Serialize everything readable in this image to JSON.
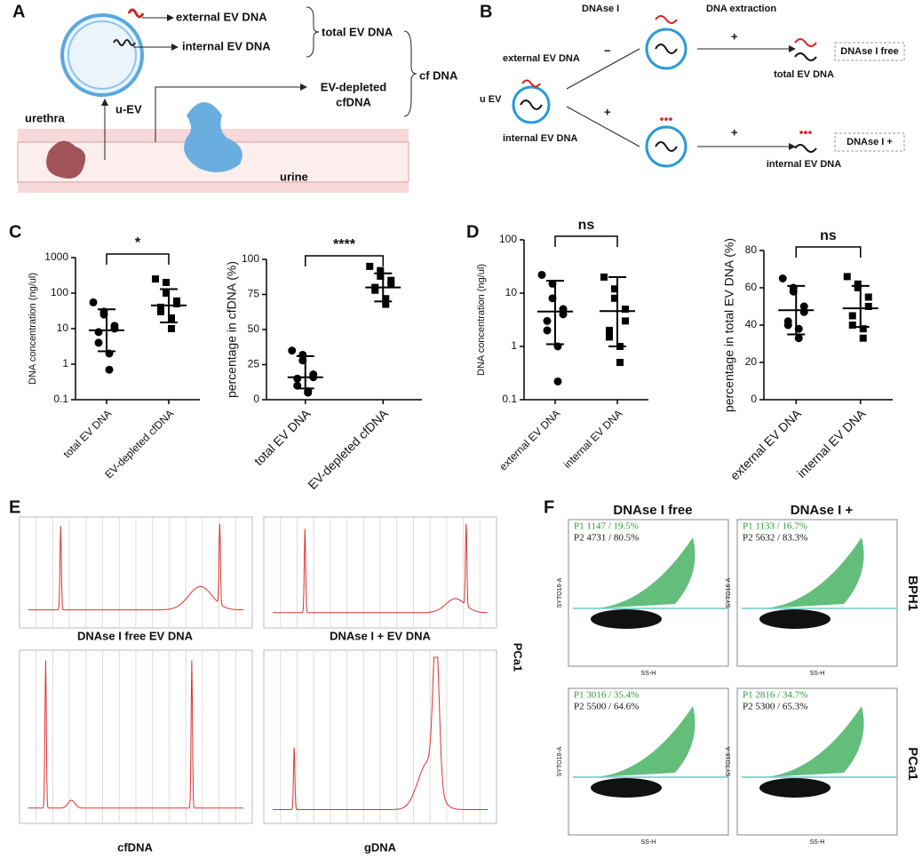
{
  "panel_labels": [
    "A",
    "B",
    "C",
    "D",
    "E",
    "F"
  ],
  "diagram_a": {
    "external": "external EV DNA",
    "internal": "internal EV DNA",
    "total": "total EV DNA",
    "cf": "cf DNA",
    "depleted": [
      "EV-depleted",
      "cfDNA"
    ],
    "uev": "u-EV",
    "urethra": "urethra",
    "urine": "urine"
  },
  "diagram_b": {
    "step1": "DNAse I",
    "step2": "DNA extraction",
    "external": "external EV DNA",
    "internal": "internal EV DNA",
    "uev": "u EV",
    "signs": [
      "−",
      "+",
      "+",
      "+"
    ],
    "out_top": "total EV DNA",
    "out_bottom": "internal EV DNA",
    "tag_top": "DNAse I free",
    "tag_bottom": "DNAse I +"
  },
  "chart_data": [
    {
      "type": "dotplot",
      "y_label": "DNA concentration (ng/ul)",
      "log_scale": true,
      "categories": [
        "total EV DNA",
        "EV-depleted cfDNA"
      ],
      "points": [
        [
          55,
          30,
          25,
          12,
          10,
          8,
          4,
          2,
          0.7
        ],
        [
          250,
          200,
          100,
          60,
          50,
          40,
          30,
          20,
          10
        ]
      ],
      "means": [
        9,
        45
      ],
      "whisker_low": [
        2.3,
        15
      ],
      "whisker_high": [
        35,
        130
      ],
      "ylim": [
        0.1,
        1000
      ],
      "yticks": [
        0.1,
        1,
        10,
        100,
        1000
      ],
      "significance": "*",
      "color": "#000000"
    },
    {
      "type": "dotplot",
      "y_label": "percentage in cfDNA (%)",
      "log_scale": false,
      "categories": [
        "total EV DNA",
        "EV-depleted cfDNA"
      ],
      "points": [
        [
          35,
          32,
          28,
          18,
          16,
          15,
          10,
          6,
          5
        ],
        [
          95,
          92,
          88,
          85,
          82,
          80,
          78,
          72,
          68
        ]
      ],
      "means": [
        16,
        80
      ],
      "whisker_low": [
        8,
        70
      ],
      "whisker_high": [
        31,
        90
      ],
      "ylim": [
        0,
        100
      ],
      "yticks": [
        0,
        25,
        50,
        75,
        100
      ],
      "significance": "****",
      "color": "#000000"
    },
    {
      "type": "dotplot",
      "y_label": "DNA concentration (ng/ul)",
      "log_scale": true,
      "categories": [
        "external EV DNA",
        "internal EV DNA"
      ],
      "points": [
        [
          22,
          15,
          8,
          5,
          4,
          3,
          2,
          1,
          0.22
        ],
        [
          20,
          12,
          8,
          5,
          3,
          2,
          1.5,
          1,
          0.5
        ]
      ],
      "means": [
        4.5,
        4.6
      ],
      "whisker_low": [
        1.1,
        1
      ],
      "whisker_high": [
        17,
        20
      ],
      "ylim": [
        0.1,
        100
      ],
      "yticks": [
        0.1,
        1,
        10,
        100
      ],
      "significance": "ns",
      "color": "#000000"
    },
    {
      "type": "dotplot",
      "y_label": "percentage in total EV DNA (%)",
      "log_scale": false,
      "categories": [
        "external EV DNA",
        "internal EV DNA"
      ],
      "points": [
        [
          65,
          60,
          58,
          50,
          47,
          42,
          40,
          38,
          33
        ],
        [
          66,
          62,
          60,
          55,
          50,
          45,
          40,
          38,
          33
        ]
      ],
      "means": [
        48,
        49
      ],
      "whisker_low": [
        35,
        39
      ],
      "whisker_high": [
        61,
        61
      ],
      "ylim": [
        0,
        80
      ],
      "yticks": [
        0,
        20,
        40,
        60,
        80
      ],
      "significance": "ns",
      "color": "#000000"
    }
  ],
  "panel_e": {
    "titles": [
      "DNAse I free EV DNA",
      "DNAse I + EV DNA",
      "cfDNA",
      "gDNA"
    ],
    "side": "PCa1"
  },
  "panel_f": {
    "columns": [
      "DNAse I free",
      "DNAse I +"
    ],
    "rows": [
      "BPH1",
      "PCa1"
    ],
    "plots": [
      {
        "p1": "P1 1147 / 19.5%",
        "p2": "P2 4731 / 80.5%"
      },
      {
        "p1": "P1 1133 / 16.7%",
        "p2": "P2 5632 / 83.3%"
      },
      {
        "p1": "P1 3016 / 35.4%",
        "p2": "P2 5500 / 64.6%"
      },
      {
        "p1": "P1 2816 / 34.7%",
        "p2": "P2 5300 / 65.3%"
      }
    ],
    "x_label": "SS-H",
    "y_label": "SYTO16-A"
  }
}
